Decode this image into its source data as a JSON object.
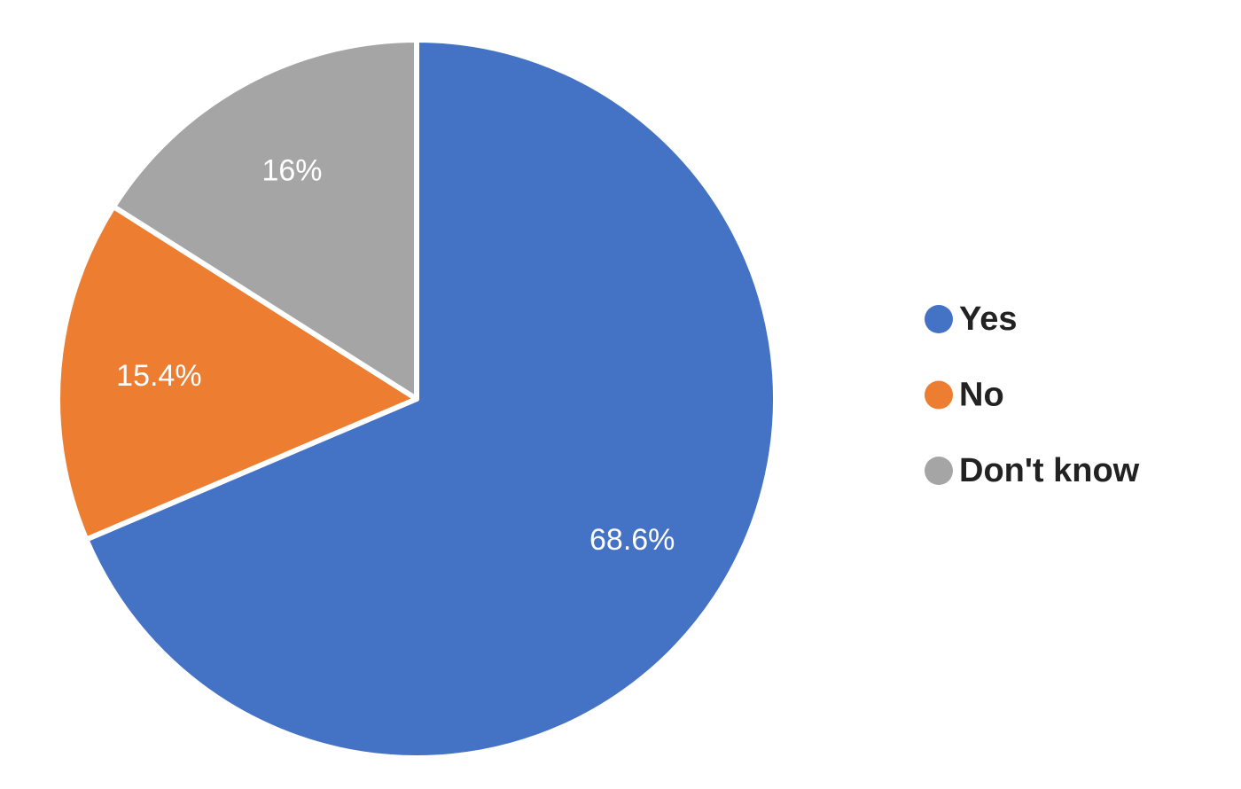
{
  "chart_data": {
    "type": "pie",
    "categories": [
      "Yes",
      "No",
      "Don't know"
    ],
    "values": [
      68.6,
      15.4,
      16
    ],
    "value_labels": [
      "68.6%",
      "15.4%",
      "16%"
    ],
    "colors": [
      "#4472c4",
      "#ed7d31",
      "#a5a5a5"
    ],
    "legend": "right"
  }
}
